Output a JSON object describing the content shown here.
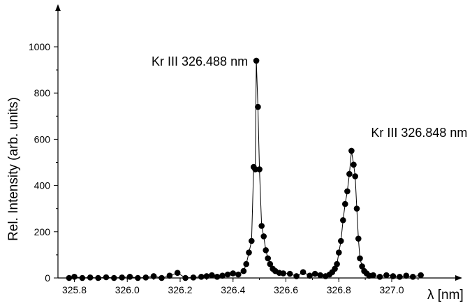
{
  "chart_data": {
    "type": "scatter",
    "title": "",
    "xlabel": "λ [nm]",
    "ylabel": "Rel. Intensity (arb. units)",
    "xlim": [
      325.75,
      327.2
    ],
    "ylim": [
      -10,
      1080
    ],
    "grid": false,
    "legend": "none",
    "x_ticks": [
      {
        "value": 325.8,
        "label": "325.8"
      },
      {
        "value": 326.0,
        "label": "326.0"
      },
      {
        "value": 326.2,
        "label": "326.2"
      },
      {
        "value": 326.4,
        "label": "326.4"
      },
      {
        "value": 326.6,
        "label": "326.6"
      },
      {
        "value": 326.8,
        "label": "326.8"
      },
      {
        "value": 327.0,
        "label": "327.0"
      }
    ],
    "y_ticks": [
      {
        "value": 0,
        "label": "0"
      },
      {
        "value": 200,
        "label": "200"
      },
      {
        "value": 400,
        "label": "400"
      },
      {
        "value": 600,
        "label": "600"
      },
      {
        "value": 800,
        "label": "800"
      },
      {
        "value": 1000,
        "label": "1000"
      }
    ],
    "annotations": [
      {
        "text": "Kr III  326.488 nm",
        "x": 326.488,
        "y": 940
      },
      {
        "text": "Kr III  326.848 nm",
        "x": 326.848,
        "y": 550
      }
    ],
    "series": [
      {
        "x": [
          325.78,
          325.8,
          325.83,
          325.86,
          325.89,
          325.92,
          325.95,
          325.98,
          326.01,
          326.04,
          326.07,
          326.1,
          326.13,
          326.16,
          326.19,
          326.22,
          326.25,
          326.28,
          326.3,
          326.32,
          326.34,
          326.36,
          326.38,
          326.4,
          326.42,
          326.44,
          326.45,
          326.46,
          326.47,
          326.478,
          326.484,
          326.488,
          326.494,
          326.5,
          326.508,
          326.516,
          326.524,
          326.532,
          326.54,
          326.55,
          326.56,
          326.575,
          326.59,
          326.615,
          326.64,
          326.665,
          326.69,
          326.71,
          326.73,
          326.75,
          326.765,
          326.775,
          326.785,
          326.793,
          326.8,
          326.808,
          326.816,
          326.824,
          326.832,
          326.84,
          326.848,
          326.856,
          326.862,
          326.868,
          326.874,
          326.88,
          326.888,
          326.896,
          326.905,
          326.915,
          326.93,
          326.955,
          326.98,
          327.005,
          327.03,
          327.055,
          327.08,
          327.11
        ],
        "y": [
          0,
          5,
          0,
          2,
          0,
          3,
          0,
          2,
          5,
          0,
          2,
          8,
          0,
          10,
          22,
          0,
          2,
          5,
          8,
          12,
          5,
          10,
          15,
          20,
          15,
          30,
          60,
          110,
          160,
          480,
          470,
          940,
          740,
          470,
          225,
          180,
          120,
          85,
          60,
          40,
          30,
          22,
          20,
          18,
          8,
          25,
          10,
          18,
          12,
          8,
          15,
          25,
          40,
          60,
          110,
          160,
          250,
          320,
          375,
          450,
          550,
          490,
          440,
          300,
          170,
          85,
          50,
          30,
          20,
          10,
          12,
          5,
          12,
          8,
          5,
          10,
          5,
          12
        ]
      }
    ]
  }
}
